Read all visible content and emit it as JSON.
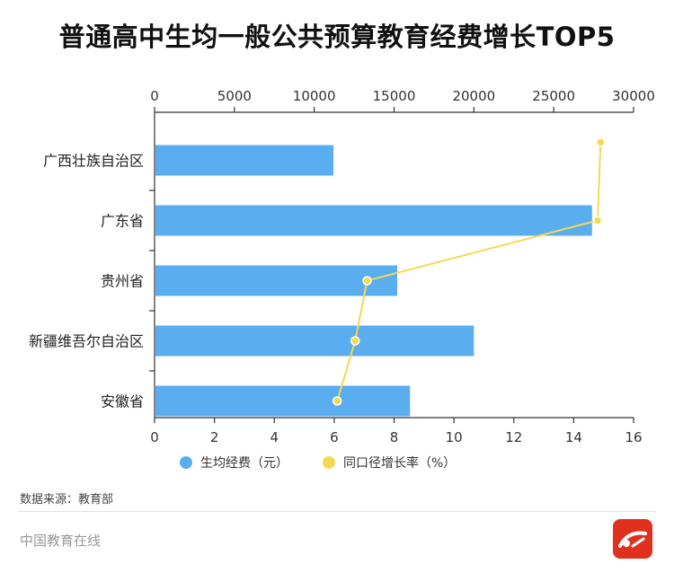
{
  "title": "普通高中生均一般公共预算教育经费增长TOP5",
  "source": "数据来源：教育部",
  "footer": "中国教育在线",
  "colors": {
    "bar": "#5aaef0",
    "line": "#f3da4f",
    "axis": "#333333",
    "tick_text": "#333333"
  },
  "chart_data": {
    "type": "bar",
    "orientation": "horizontal",
    "categories": [
      "广西壮族自治区",
      "广东省",
      "贵州省",
      "新疆维吾尔自治区",
      "安徽省"
    ],
    "series": [
      {
        "name": "生均经费（元）",
        "type": "bar",
        "axis": "top",
        "values": [
          11200,
          27400,
          15200,
          20000,
          16000
        ]
      },
      {
        "name": "同口径增长率（%）",
        "type": "line",
        "axis": "bottom",
        "values": [
          14.9,
          14.8,
          7.1,
          6.7,
          6.1
        ]
      }
    ],
    "top_axis": {
      "ticks": [
        0,
        5000,
        10000,
        15000,
        20000,
        25000,
        30000
      ],
      "lim": [
        0,
        30000
      ]
    },
    "bottom_axis": {
      "ticks": [
        0,
        2,
        4,
        6,
        8,
        10,
        12,
        14,
        16
      ],
      "lim": [
        0,
        16
      ]
    },
    "legend": {
      "position": "bottom",
      "labels": [
        "生均经费（元）",
        "同口径增长率（%）"
      ]
    }
  }
}
